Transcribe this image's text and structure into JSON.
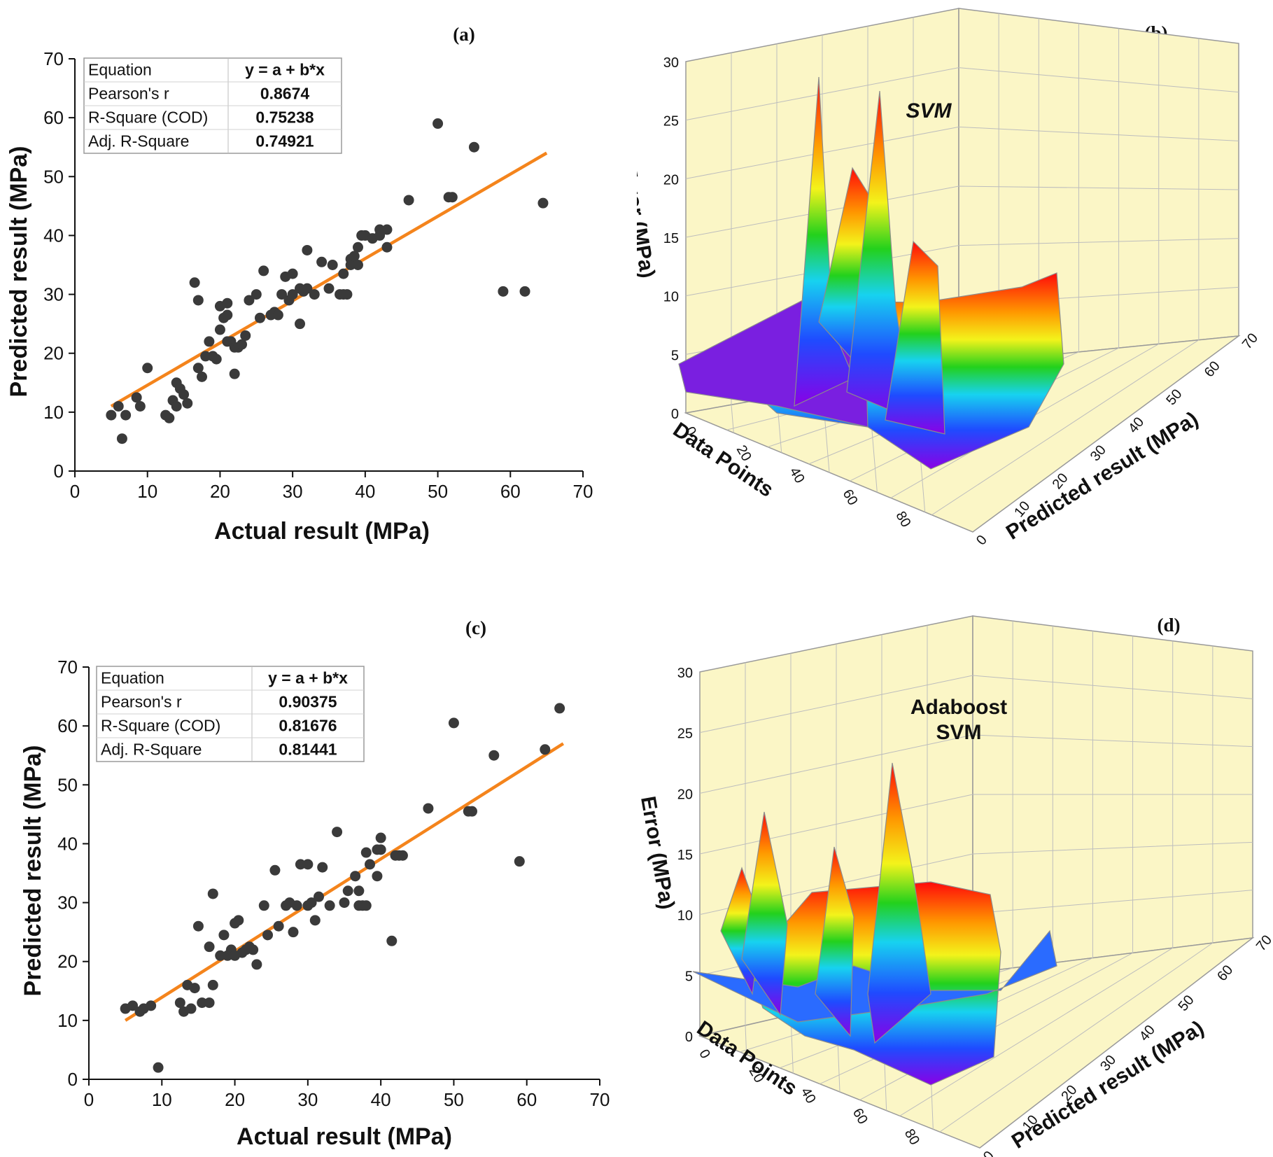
{
  "figure_labels": {
    "a": "(a)",
    "b": "(b)",
    "c": "(c)",
    "d": "(d)"
  },
  "chart_data": [
    {
      "id": "a",
      "type": "scatter",
      "title": "(a)",
      "xlabel": "Actual result (MPa)",
      "ylabel": "Predicted result (MPa)",
      "xlim": [
        0,
        70
      ],
      "ylim": [
        0,
        70
      ],
      "xticks": [
        0,
        10,
        20,
        30,
        40,
        50,
        60,
        70
      ],
      "yticks": [
        0,
        10,
        20,
        30,
        40,
        50,
        60,
        70
      ],
      "fit_line": {
        "x": [
          5,
          65
        ],
        "y": [
          11,
          54
        ],
        "color": "#f4841c"
      },
      "point_color": "#3a3a3a",
      "stats_table": [
        {
          "label": "Equation",
          "value": "y = a + b*x"
        },
        {
          "label": "Pearson's r",
          "value": "0.8674"
        },
        {
          "label": "R-Square (COD)",
          "value": "0.75238"
        },
        {
          "label": "Adj. R-Square",
          "value": "0.74921"
        }
      ],
      "points": [
        [
          5,
          9.5
        ],
        [
          6,
          11
        ],
        [
          6.5,
          5.5
        ],
        [
          7,
          9.5
        ],
        [
          8.5,
          12.5
        ],
        [
          9,
          11
        ],
        [
          10,
          17.5
        ],
        [
          12.5,
          9.5
        ],
        [
          13,
          9
        ],
        [
          13.5,
          12
        ],
        [
          14,
          11
        ],
        [
          14,
          15
        ],
        [
          14.5,
          14
        ],
        [
          15,
          13
        ],
        [
          15.5,
          11.5
        ],
        [
          16.5,
          32
        ],
        [
          17,
          29
        ],
        [
          17,
          17.5
        ],
        [
          17.5,
          16
        ],
        [
          18,
          19.5
        ],
        [
          18.5,
          22
        ],
        [
          19,
          19.5
        ],
        [
          19.5,
          19
        ],
        [
          20,
          24
        ],
        [
          20,
          28
        ],
        [
          20.5,
          26
        ],
        [
          21,
          28.5
        ],
        [
          21,
          26.5
        ],
        [
          21,
          22
        ],
        [
          21.5,
          22
        ],
        [
          22,
          16.5
        ],
        [
          22,
          21
        ],
        [
          22.5,
          21
        ],
        [
          23,
          21.5
        ],
        [
          23.5,
          23
        ],
        [
          24,
          29
        ],
        [
          25,
          30
        ],
        [
          25.5,
          26
        ],
        [
          26,
          34
        ],
        [
          27,
          26.5
        ],
        [
          27.5,
          27
        ],
        [
          28,
          26.5
        ],
        [
          28.5,
          30
        ],
        [
          29,
          33
        ],
        [
          29.5,
          29
        ],
        [
          30,
          33.5
        ],
        [
          30,
          30
        ],
        [
          31,
          31
        ],
        [
          31,
          25
        ],
        [
          31.5,
          30.5
        ],
        [
          32,
          31
        ],
        [
          32,
          37.5
        ],
        [
          33,
          30
        ],
        [
          34,
          35.5
        ],
        [
          35,
          31
        ],
        [
          35.5,
          35
        ],
        [
          36.5,
          30
        ],
        [
          37,
          30
        ],
        [
          37,
          33.5
        ],
        [
          37.5,
          30
        ],
        [
          38,
          35
        ],
        [
          38,
          36
        ],
        [
          38.5,
          36.5
        ],
        [
          39,
          35
        ],
        [
          39,
          38
        ],
        [
          39.5,
          40
        ],
        [
          40,
          40
        ],
        [
          41,
          39.5
        ],
        [
          42,
          40
        ],
        [
          42,
          41
        ],
        [
          43,
          38
        ],
        [
          43,
          41
        ],
        [
          46,
          46
        ],
        [
          50,
          59
        ],
        [
          51.5,
          46.5
        ],
        [
          52,
          46.5
        ],
        [
          55,
          55
        ],
        [
          59,
          30.5
        ],
        [
          62,
          30.5
        ],
        [
          64.5,
          45.5
        ]
      ]
    },
    {
      "id": "b",
      "type": "surface3d",
      "title": "(b)",
      "annotation": "SVM",
      "xlabel": "Data Points",
      "ylabel": "Predicted result (MPa)",
      "zlabel": "Error (MPa)",
      "xticks": [
        0,
        20,
        40,
        60,
        80
      ],
      "yticks": [
        0,
        10,
        20,
        30,
        40,
        50,
        60,
        70
      ],
      "zticks": [
        0,
        5,
        10,
        15,
        20,
        25,
        30
      ],
      "zlim": [
        0,
        30
      ],
      "peaks_mpa": [
        30,
        26,
        20,
        12
      ]
    },
    {
      "id": "c",
      "type": "scatter",
      "title": "(c)",
      "xlabel": "Actual result (MPa)",
      "ylabel": "Predicted result (MPa)",
      "xlim": [
        0,
        70
      ],
      "ylim": [
        0,
        70
      ],
      "xticks": [
        0,
        10,
        20,
        30,
        40,
        50,
        60,
        70
      ],
      "yticks": [
        0,
        10,
        20,
        30,
        40,
        50,
        60,
        70
      ],
      "fit_line": {
        "x": [
          5,
          65
        ],
        "y": [
          10,
          57
        ],
        "color": "#f4841c"
      },
      "point_color": "#3a3a3a",
      "stats_table": [
        {
          "label": "Equation",
          "value": "y = a + b*x"
        },
        {
          "label": "Pearson's r",
          "value": "0.90375"
        },
        {
          "label": "R-Square (COD)",
          "value": "0.81676"
        },
        {
          "label": "Adj. R-Square",
          "value": "0.81441"
        }
      ],
      "points": [
        [
          5,
          12
        ],
        [
          6,
          12.5
        ],
        [
          7,
          11.5
        ],
        [
          7.5,
          12
        ],
        [
          8.5,
          12.5
        ],
        [
          9.5,
          2
        ],
        [
          12.5,
          13
        ],
        [
          13,
          11.5
        ],
        [
          13.5,
          16
        ],
        [
          14,
          12
        ],
        [
          14.5,
          15.5
        ],
        [
          15,
          26
        ],
        [
          15.5,
          13
        ],
        [
          16.5,
          22.5
        ],
        [
          16.5,
          13
        ],
        [
          17,
          31.5
        ],
        [
          17,
          16
        ],
        [
          18,
          21
        ],
        [
          18.5,
          24.5
        ],
        [
          19,
          21
        ],
        [
          19.5,
          22
        ],
        [
          20,
          26.5
        ],
        [
          20.5,
          27
        ],
        [
          20,
          21
        ],
        [
          21,
          21.5
        ],
        [
          21.5,
          22
        ],
        [
          22,
          22.5
        ],
        [
          22.5,
          22
        ],
        [
          23,
          19.5
        ],
        [
          24,
          29.5
        ],
        [
          24.5,
          24.5
        ],
        [
          25.5,
          35.5
        ],
        [
          26,
          26
        ],
        [
          27,
          29.5
        ],
        [
          27.5,
          30
        ],
        [
          28,
          25
        ],
        [
          28.5,
          29.5
        ],
        [
          29,
          36.5
        ],
        [
          30,
          36.5
        ],
        [
          30,
          29.5
        ],
        [
          30.5,
          30
        ],
        [
          31,
          27
        ],
        [
          31.5,
          31
        ],
        [
          32,
          36
        ],
        [
          33,
          29.5
        ],
        [
          34,
          42
        ],
        [
          35,
          30
        ],
        [
          35.5,
          32
        ],
        [
          36.5,
          34.5
        ],
        [
          37,
          32
        ],
        [
          37,
          29.5
        ],
        [
          37.5,
          29.5
        ],
        [
          38,
          29.5
        ],
        [
          38,
          38.5
        ],
        [
          38.5,
          36.5
        ],
        [
          39.5,
          34.5
        ],
        [
          39.5,
          39
        ],
        [
          40,
          41
        ],
        [
          40,
          39
        ],
        [
          41.5,
          23.5
        ],
        [
          42,
          38
        ],
        [
          42.5,
          38
        ],
        [
          43,
          38
        ],
        [
          46.5,
          46
        ],
        [
          50,
          60.5
        ],
        [
          52,
          45.5
        ],
        [
          52.5,
          45.5
        ],
        [
          55.5,
          55
        ],
        [
          59,
          37
        ],
        [
          62.5,
          56
        ],
        [
          64.5,
          63
        ]
      ]
    },
    {
      "id": "d",
      "type": "surface3d",
      "title": "(d)",
      "annotation_line1": "Adaboost",
      "annotation_line2": "SVM",
      "xlabel": "Data Points",
      "ylabel": "Predicted result (MPa)",
      "zlabel": "Error (MPa)",
      "xticks": [
        0,
        20,
        40,
        60,
        80
      ],
      "yticks": [
        0,
        10,
        20,
        30,
        40,
        50,
        60,
        70
      ],
      "zticks": [
        0,
        5,
        10,
        15,
        20,
        25,
        30
      ],
      "zlim": [
        0,
        30
      ],
      "peaks_mpa": [
        18,
        21.5,
        15,
        11
      ]
    }
  ]
}
